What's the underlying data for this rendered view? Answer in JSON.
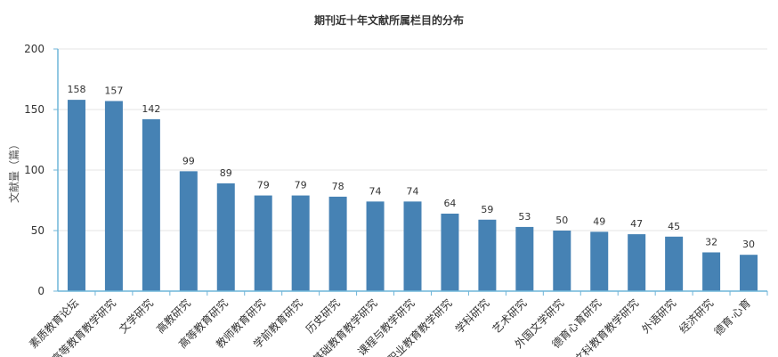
{
  "chart_data": {
    "type": "bar",
    "title": "期刊近十年文献所属栏目的分布",
    "xlabel": "",
    "ylabel": "文献量（篇）",
    "ylim": [
      0,
      200
    ],
    "yticks": [
      0,
      50,
      100,
      150,
      200
    ],
    "grid": true,
    "categories": [
      "素质教育论坛",
      "高等教育教学研究",
      "文学研究",
      "高教研究",
      "高等教育研究",
      "教师教育研究",
      "学前教育研究",
      "历史研究",
      "基础教育教学研究",
      "课程与教学研究",
      "职业教育教学研究",
      "学科研究",
      "艺术研究",
      "外国文学研究",
      "德育心育研究",
      "文科教育教学研究",
      "外语研究",
      "经济研究",
      "德育·心育"
    ],
    "values": [
      158,
      157,
      142,
      99,
      89,
      79,
      79,
      78,
      74,
      74,
      64,
      59,
      53,
      50,
      49,
      47,
      45,
      32,
      30
    ],
    "colors": {
      "bar": "#4682b4",
      "axis": "#6fb5d8",
      "grid": "#e4e4e4"
    }
  }
}
